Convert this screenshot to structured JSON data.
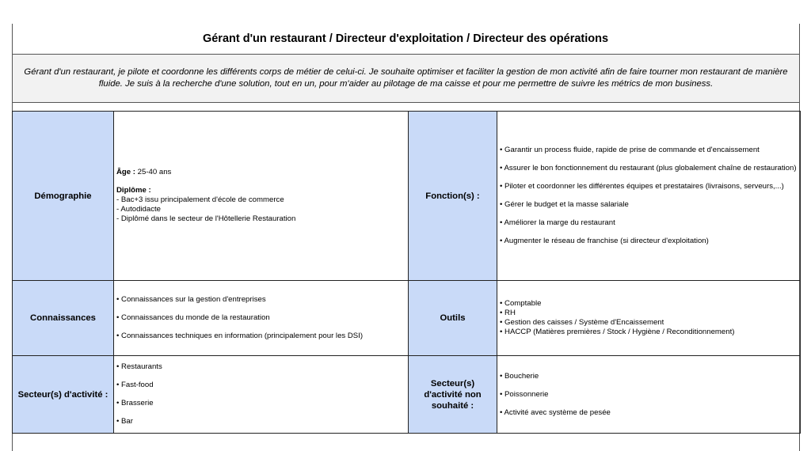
{
  "title": "Gérant d'un restaurant / Directeur d'exploitation / Directeur des opérations",
  "description": "Gérant d'un restaurant, je pilote et coordonne les différents corps de métier de celui-ci. Je souhaite optimiser et faciliter la gestion de mon activité afin de faire tourner mon restaurant de manière fluide. Je suis à la recherche d'une solution, tout en un, pour m'aider au pilotage de ma caisse et pour me permettre de suivre les métrics de mon business.",
  "rows": [
    {
      "label_left": "Démographie",
      "age_label": "Âge :",
      "age_value": " 25-40 ans",
      "diplome_label": "Diplôme :",
      "diplomes": [
        "- Bac+3 issu principalement d'école de commerce",
        "- Autodidacte",
        "- Diplômé dans le secteur de l'Hôtellerie Restauration"
      ],
      "label_right": "Fonction(s) :",
      "right_items": [
        "• Garantir un process fluide, rapide de prise de commande et d'encaissement",
        "• Assurer le bon fonctionnement du restaurant (plus globalement chaîne de restauration)",
        "• Piloter et coordonner les différentes équipes et prestataires (livraisons, serveurs,...)",
        "• Gérer le budget et la masse salariale",
        "• Améliorer la marge du restaurant",
        "• Augmenter le réseau de franchise (si directeur d'exploitation)"
      ]
    },
    {
      "label_left": "Connaissances",
      "left_items": [
        "• Connaissances sur la gestion d'entreprises",
        "• Connaissances du monde de la restauration",
        "• Connaissances techniques en information (principalement pour les DSI)"
      ],
      "label_right": "Outils",
      "right_items": [
        "• Comptable",
        "• RH",
        "• Gestion des caisses / Système d'Encaissement",
        "•  HACCP (Matières premières / Stock / Hygiène / Reconditionnement)"
      ]
    },
    {
      "label_left": "Secteur(s) d'activité :",
      "left_items": [
        "• Restaurants",
        "• Fast-food",
        "• Brasserie",
        "• Bar"
      ],
      "label_right": "Secteur(s) d'activité non souhaité :",
      "right_items": [
        "• Boucherie",
        "• Poissonnerie",
        "• Activité avec système de pesée"
      ]
    }
  ]
}
